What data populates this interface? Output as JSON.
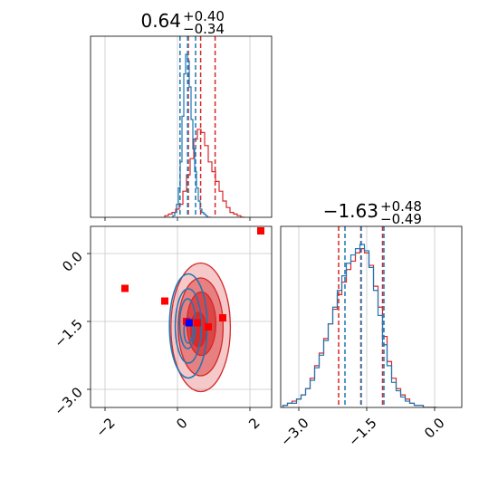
{
  "chart_data": {
    "type": "corner",
    "colors": {
      "red": "#d62728",
      "blue": "#1f77b4",
      "red_marker": "#ff0000",
      "blue_marker": "#0000ff",
      "grid": "#c8c8c8"
    },
    "grid": true,
    "parameters": [
      {
        "index": 0,
        "range": [
          -2.4,
          2.6
        ],
        "ticks": [
          -2,
          0,
          2
        ],
        "tick_labels": [
          "−2",
          "0",
          "2"
        ]
      },
      {
        "index": 1,
        "range": [
          -3.4,
          0.6
        ],
        "ticks": [
          -3.0,
          -1.5,
          0.0
        ],
        "tick_labels": [
          "−3.0",
          "−1.5",
          "0.0"
        ]
      }
    ],
    "titles": [
      {
        "value": "0.64",
        "plus": "+0.40",
        "minus": "−0.34"
      },
      {
        "value": "−1.63",
        "plus": "+0.48",
        "minus": "−0.49"
      }
    ],
    "histograms": [
      {
        "param": 0,
        "red": {
          "median": 0.64,
          "q16": 0.3,
          "q84": 1.04,
          "centers": [
            -0.3,
            -0.2,
            -0.1,
            0.0,
            0.1,
            0.2,
            0.3,
            0.4,
            0.5,
            0.6,
            0.7,
            0.8,
            0.9,
            1.0,
            1.1,
            1.2,
            1.3,
            1.4,
            1.5,
            1.6,
            1.7,
            1.8
          ],
          "counts": [
            1,
            2,
            3,
            5,
            8,
            16,
            26,
            36,
            48,
            54,
            52,
            44,
            34,
            28,
            22,
            16,
            10,
            6,
            3,
            2,
            1,
            0
          ]
        },
        "blue": {
          "median": 0.28,
          "q16": 0.07,
          "q84": 0.5,
          "centers": [
            -0.1,
            -0.05,
            0.0,
            0.05,
            0.1,
            0.15,
            0.2,
            0.25,
            0.3,
            0.35,
            0.4,
            0.45,
            0.5,
            0.55,
            0.6,
            0.65,
            0.7,
            0.75,
            0.8,
            0.85,
            0.9
          ],
          "counts": [
            1,
            3,
            8,
            18,
            34,
            62,
            88,
            100,
            96,
            80,
            60,
            42,
            28,
            18,
            10,
            5,
            3,
            2,
            1,
            0,
            0
          ]
        }
      },
      {
        "param": 1,
        "red": {
          "median": -1.63,
          "q16": -2.12,
          "q84": -1.15,
          "centers": [
            -3.3,
            -3.2,
            -3.1,
            -3.0,
            -2.9,
            -2.8,
            -2.7,
            -2.6,
            -2.5,
            -2.4,
            -2.3,
            -2.2,
            -2.1,
            -2.0,
            -1.9,
            -1.8,
            -1.7,
            -1.6,
            -1.5,
            -1.4,
            -1.3,
            -1.2,
            -1.1,
            -1.0,
            -0.9,
            -0.8,
            -0.7,
            -0.6,
            -0.5,
            -0.4,
            -0.3,
            -0.2,
            -0.1,
            0.0
          ],
          "counts": [
            1,
            2,
            3,
            4,
            6,
            9,
            14,
            20,
            26,
            33,
            40,
            47,
            54,
            60,
            66,
            70,
            74,
            76,
            74,
            68,
            58,
            48,
            34,
            22,
            14,
            9,
            6,
            4,
            2,
            1,
            1,
            0,
            0,
            0
          ]
        },
        "blue": {
          "median": -1.62,
          "q16": -1.98,
          "q84": -1.12,
          "centers": [
            -3.3,
            -3.2,
            -3.1,
            -3.0,
            -2.9,
            -2.8,
            -2.7,
            -2.6,
            -2.5,
            -2.4,
            -2.3,
            -2.2,
            -2.1,
            -2.0,
            -1.9,
            -1.8,
            -1.7,
            -1.6,
            -1.5,
            -1.4,
            -1.3,
            -1.2,
            -1.1,
            -1.0,
            -0.9,
            -0.8,
            -0.7,
            -0.6,
            -0.5,
            -0.4,
            -0.3,
            -0.2,
            -0.1,
            0.0
          ],
          "counts": [
            1,
            2,
            2,
            4,
            6,
            9,
            13,
            19,
            25,
            32,
            40,
            48,
            56,
            63,
            69,
            73,
            76,
            78,
            75,
            67,
            56,
            44,
            30,
            20,
            12,
            8,
            5,
            3,
            2,
            1,
            1,
            0,
            0,
            0
          ]
        }
      }
    ],
    "joint": {
      "x_param": 0,
      "y_param": 1,
      "red_contours": [
        {
          "center": [
            0.64,
            -1.63
          ],
          "radii": [
            0.82,
            1.42
          ]
        },
        {
          "center": [
            0.64,
            -1.62
          ],
          "radii": [
            0.62,
            1.08
          ]
        },
        {
          "center": [
            0.66,
            -1.55
          ],
          "radii": [
            0.4,
            0.7
          ]
        },
        {
          "center": [
            0.58,
            -1.68
          ],
          "radii": [
            0.22,
            0.38
          ]
        }
      ],
      "blue_contours": [
        {
          "center": [
            0.3,
            -1.6
          ],
          "radii": [
            0.52,
            1.15
          ]
        },
        {
          "center": [
            0.3,
            -1.6
          ],
          "radii": [
            0.36,
            0.82
          ]
        },
        {
          "center": [
            0.28,
            -1.55
          ],
          "radii": [
            0.22,
            0.55
          ]
        },
        {
          "center": [
            0.3,
            -1.7
          ],
          "radii": [
            0.12,
            0.28
          ]
        }
      ],
      "red_markers": [
        {
          "x": 2.3,
          "y": 0.5
        },
        {
          "x": -1.45,
          "y": -0.77
        },
        {
          "x": -0.35,
          "y": -1.05
        },
        {
          "x": 0.25,
          "y": -1.5
        },
        {
          "x": 0.55,
          "y": -1.53
        },
        {
          "x": 0.85,
          "y": -1.62
        },
        {
          "x": 1.25,
          "y": -1.42
        }
      ],
      "blue_markers": [
        {
          "x": 0.32,
          "y": -1.53
        }
      ]
    }
  }
}
